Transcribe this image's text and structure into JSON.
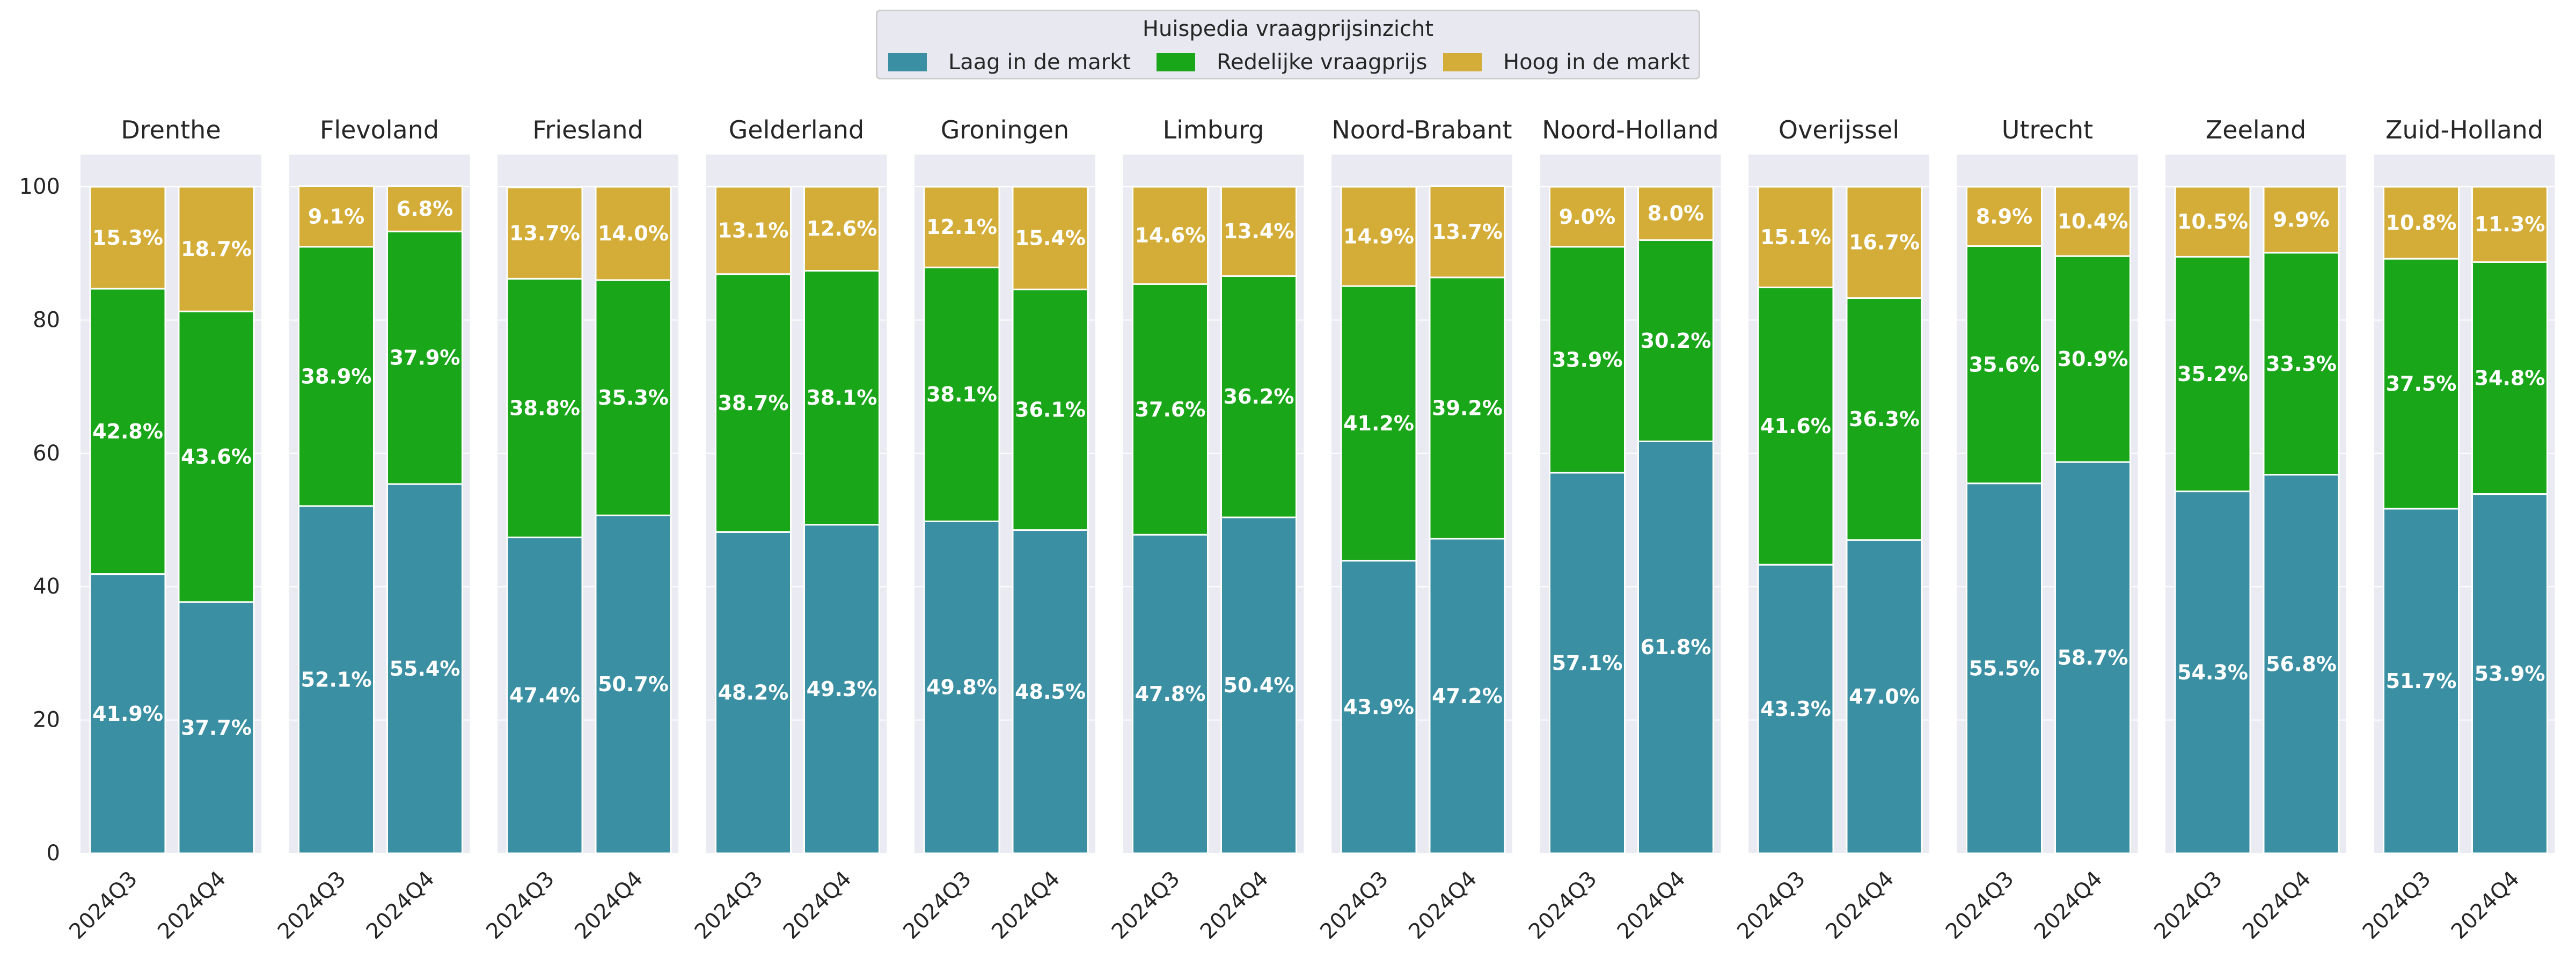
{
  "chart_data": {
    "type": "bar",
    "stacked": true,
    "legend": {
      "title": "Huispedia vraagprijsinzicht",
      "placement": "top-center"
    },
    "ylim": [
      0,
      100
    ],
    "yticks": [
      "0",
      "20",
      "40",
      "60",
      "80",
      "100"
    ],
    "categories": [
      "2024Q3",
      "2024Q4"
    ],
    "series": [
      {
        "name": "Laag in de markt",
        "color": "#3b8fa3"
      },
      {
        "name": "Redelijke vraagprijs",
        "color": "#19a619"
      },
      {
        "name": "Hoog in de markt",
        "color": "#d4ad38"
      }
    ],
    "panels": [
      {
        "title": "Drenthe",
        "values": [
          [
            41.9,
            42.8,
            15.3
          ],
          [
            37.7,
            43.6,
            18.7
          ]
        ],
        "labels": [
          [
            "41.9%",
            "42.8%",
            "15.3%"
          ],
          [
            "37.7%",
            "43.6%",
            "18.7%"
          ]
        ]
      },
      {
        "title": "Flevoland",
        "values": [
          [
            52.1,
            38.9,
            9.1
          ],
          [
            55.4,
            37.9,
            6.8
          ]
        ],
        "labels": [
          [
            "52.1%",
            "38.9%",
            "9.1%"
          ],
          [
            "55.4%",
            "37.9%",
            "6.8%"
          ]
        ]
      },
      {
        "title": "Friesland",
        "values": [
          [
            47.4,
            38.8,
            13.7
          ],
          [
            50.7,
            35.3,
            14.0
          ]
        ],
        "labels": [
          [
            "47.4%",
            "38.8%",
            "13.7%"
          ],
          [
            "50.7%",
            "35.3%",
            "14.0%"
          ]
        ]
      },
      {
        "title": "Gelderland",
        "values": [
          [
            48.2,
            38.7,
            13.1
          ],
          [
            49.3,
            38.1,
            12.6
          ]
        ],
        "labels": [
          [
            "48.2%",
            "38.7%",
            "13.1%"
          ],
          [
            "49.3%",
            "38.1%",
            "12.6%"
          ]
        ]
      },
      {
        "title": "Groningen",
        "values": [
          [
            49.8,
            38.1,
            12.1
          ],
          [
            48.5,
            36.1,
            15.4
          ]
        ],
        "labels": [
          [
            "49.8%",
            "38.1%",
            "12.1%"
          ],
          [
            "48.5%",
            "36.1%",
            "15.4%"
          ]
        ]
      },
      {
        "title": "Limburg",
        "values": [
          [
            47.8,
            37.6,
            14.6
          ],
          [
            50.4,
            36.2,
            13.4
          ]
        ],
        "labels": [
          [
            "47.8%",
            "37.6%",
            "14.6%"
          ],
          [
            "50.4%",
            "36.2%",
            "13.4%"
          ]
        ]
      },
      {
        "title": "Noord-Brabant",
        "values": [
          [
            43.9,
            41.2,
            14.9
          ],
          [
            47.2,
            39.2,
            13.7
          ]
        ],
        "labels": [
          [
            "43.9%",
            "41.2%",
            "14.9%"
          ],
          [
            "47.2%",
            "39.2%",
            "13.7%"
          ]
        ]
      },
      {
        "title": "Noord-Holland",
        "values": [
          [
            57.1,
            33.9,
            9.0
          ],
          [
            61.8,
            30.2,
            8.0
          ]
        ],
        "labels": [
          [
            "57.1%",
            "33.9%",
            "9.0%"
          ],
          [
            "61.8%",
            "30.2%",
            "8.0%"
          ]
        ]
      },
      {
        "title": "Overijssel",
        "values": [
          [
            43.3,
            41.6,
            15.1
          ],
          [
            47.0,
            36.3,
            16.7
          ]
        ],
        "labels": [
          [
            "43.3%",
            "41.6%",
            "15.1%"
          ],
          [
            "47.0%",
            "36.3%",
            "16.7%"
          ]
        ]
      },
      {
        "title": "Utrecht",
        "values": [
          [
            55.5,
            35.6,
            8.9
          ],
          [
            58.7,
            30.9,
            10.4
          ]
        ],
        "labels": [
          [
            "55.5%",
            "35.6%",
            "8.9%"
          ],
          [
            "58.7%",
            "30.9%",
            "10.4%"
          ]
        ]
      },
      {
        "title": "Zeeland",
        "values": [
          [
            54.3,
            35.2,
            10.5
          ],
          [
            56.8,
            33.3,
            9.9
          ]
        ],
        "labels": [
          [
            "54.3%",
            "35.2%",
            "10.5%"
          ],
          [
            "56.8%",
            "33.3%",
            "9.9%"
          ]
        ]
      },
      {
        "title": "Zuid-Holland",
        "values": [
          [
            51.7,
            37.5,
            10.8
          ],
          [
            53.9,
            34.8,
            11.3
          ]
        ],
        "labels": [
          [
            "51.7%",
            "37.5%",
            "10.8%"
          ],
          [
            "53.9%",
            "34.8%",
            "11.3%"
          ]
        ]
      }
    ]
  }
}
